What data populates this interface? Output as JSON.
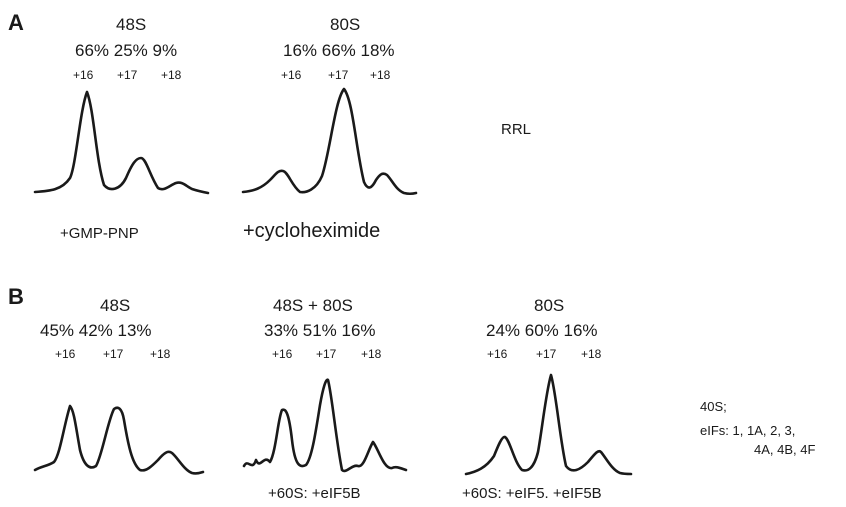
{
  "panels": [
    {
      "letter": "A",
      "side_label": "RRL",
      "profiles": [
        {
          "title": "48S",
          "percents": "66% 25% 9%",
          "positions": [
            "+16",
            "+17",
            "+18"
          ],
          "condition": "+GMP-PNP"
        },
        {
          "title": "80S",
          "percents": "16% 66% 18%",
          "positions": [
            "+16",
            "+17",
            "+18"
          ],
          "condition": "+cycloheximide"
        }
      ]
    },
    {
      "letter": "B",
      "side_label_line1": "40S;",
      "side_label_line2": "eIFs: 1, 1A, 2, 3,",
      "side_label_line3": "4A, 4B, 4F",
      "profiles": [
        {
          "title": "48S",
          "percents": "45% 42% 13%",
          "positions": [
            "+16",
            "+17",
            "+18"
          ],
          "condition": ""
        },
        {
          "title": "48S + 80S",
          "percents": "33% 51% 16%",
          "positions": [
            "+16",
            "+17",
            "+18"
          ],
          "condition": "+60S: +eIF5B"
        },
        {
          "title": "80S",
          "percents": "24% 60% 16%",
          "positions": [
            "+16",
            "+17",
            "+18"
          ],
          "condition": "+60S: +eIF5. +eIF5B"
        }
      ]
    }
  ],
  "trace_color": "#1a1a1a"
}
